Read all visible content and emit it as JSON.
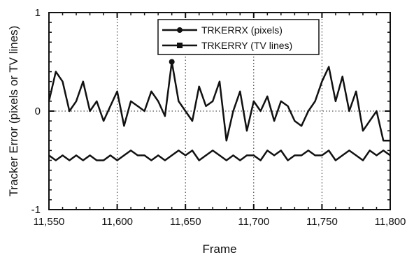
{
  "chart_data": {
    "type": "line",
    "title": "",
    "xlabel": "Frame",
    "ylabel": "Tracker Error (pixels or TV lines)",
    "xlim": [
      11550,
      11800
    ],
    "ylim": [
      -1,
      1
    ],
    "x_tick_labels": [
      "11,550",
      "11,600",
      "11,650",
      "11,700",
      "11,750",
      "11,800"
    ],
    "y_tick_labels": [
      "1",
      "0",
      "-1"
    ],
    "grid": "dotted vertical and horizontal lines at major ticks",
    "legend_position": "top-center",
    "series": [
      {
        "name": "TRKERRX (pixels)",
        "marker": "circle",
        "color": "#111111",
        "x": [
          11550,
          11555,
          11560,
          11565,
          11570,
          11575,
          11580,
          11585,
          11590,
          11595,
          11600,
          11605,
          11610,
          11615,
          11620,
          11625,
          11630,
          11635,
          11640,
          11645,
          11650,
          11655,
          11660,
          11665,
          11670,
          11675,
          11680,
          11685,
          11690,
          11695,
          11700,
          11705,
          11710,
          11715,
          11720,
          11725,
          11730,
          11735,
          11740,
          11745,
          11750,
          11755,
          11760,
          11765,
          11770,
          11775,
          11780,
          11785,
          11790,
          11795,
          11800
        ],
        "y": [
          0.1,
          0.4,
          0.3,
          0.0,
          0.1,
          0.3,
          0.0,
          0.1,
          -0.1,
          0.05,
          0.2,
          -0.15,
          0.1,
          0.05,
          0.0,
          0.2,
          0.1,
          -0.05,
          0.5,
          0.1,
          0.0,
          -0.1,
          0.25,
          0.05,
          0.1,
          0.3,
          -0.3,
          0.0,
          0.2,
          -0.2,
          0.1,
          0.0,
          0.15,
          -0.1,
          0.1,
          0.05,
          -0.1,
          -0.15,
          0.0,
          0.1,
          0.3,
          0.45,
          0.1,
          0.35,
          0.0,
          0.2,
          -0.2,
          -0.1,
          0.0,
          -0.3,
          -0.3
        ]
      },
      {
        "name": "TRKERRY (TV lines)",
        "marker": "square",
        "color": "#111111",
        "x": [
          11550,
          11555,
          11560,
          11565,
          11570,
          11575,
          11580,
          11585,
          11590,
          11595,
          11600,
          11605,
          11610,
          11615,
          11620,
          11625,
          11630,
          11635,
          11640,
          11645,
          11650,
          11655,
          11660,
          11665,
          11670,
          11675,
          11680,
          11685,
          11690,
          11695,
          11700,
          11705,
          11710,
          11715,
          11720,
          11725,
          11730,
          11735,
          11740,
          11745,
          11750,
          11755,
          11760,
          11765,
          11770,
          11775,
          11780,
          11785,
          11790,
          11795,
          11800
        ],
        "y": [
          -0.45,
          -0.5,
          -0.45,
          -0.5,
          -0.45,
          -0.5,
          -0.45,
          -0.5,
          -0.5,
          -0.45,
          -0.5,
          -0.45,
          -0.4,
          -0.45,
          -0.45,
          -0.5,
          -0.45,
          -0.5,
          -0.45,
          -0.4,
          -0.45,
          -0.4,
          -0.5,
          -0.45,
          -0.4,
          -0.45,
          -0.5,
          -0.45,
          -0.5,
          -0.45,
          -0.45,
          -0.5,
          -0.4,
          -0.45,
          -0.4,
          -0.5,
          -0.45,
          -0.45,
          -0.4,
          -0.45,
          -0.45,
          -0.4,
          -0.5,
          -0.45,
          -0.4,
          -0.45,
          -0.5,
          -0.4,
          -0.45,
          -0.4,
          -0.45
        ]
      }
    ]
  }
}
